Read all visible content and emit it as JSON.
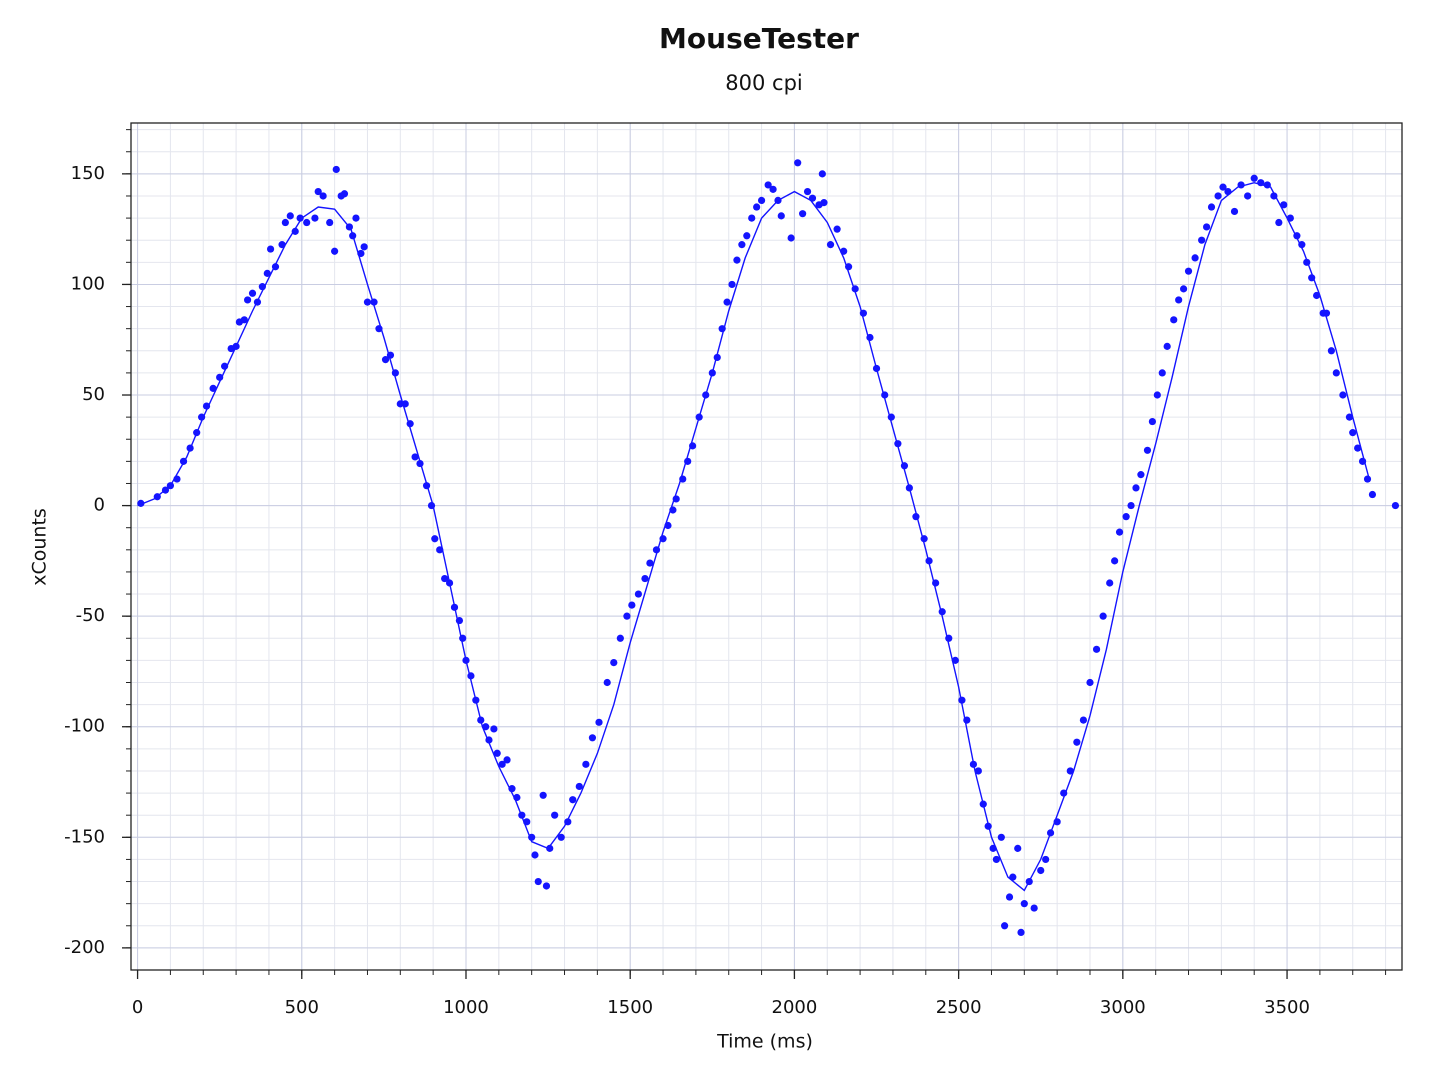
{
  "chart_data": {
    "type": "scatter",
    "title": "MouseTester",
    "subtitle": "800 cpi",
    "x_label": "Time (ms)",
    "y_label": "xCounts",
    "xlim": [
      -20,
      3850
    ],
    "ylim": [
      -210,
      173
    ],
    "xticks": [
      0,
      500,
      1000,
      1500,
      2000,
      2500,
      3000,
      3500
    ],
    "yticks": [
      -200,
      -150,
      -100,
      -50,
      0,
      50,
      100,
      150
    ],
    "grid": true,
    "series": [
      {
        "style": "markers",
        "color": "#1414ff",
        "x": [
          10,
          60,
          85,
          100,
          120,
          140,
          160,
          180,
          195,
          210,
          230,
          250,
          265,
          285,
          300,
          310,
          325,
          335,
          350,
          365,
          380,
          395,
          405,
          420,
          440,
          450,
          465,
          480,
          495,
          515,
          540,
          550,
          565,
          585,
          600,
          605,
          620,
          630,
          645,
          655,
          665,
          680,
          690,
          700,
          720,
          735,
          755,
          770,
          785,
          800,
          815,
          830,
          845,
          860,
          880,
          895,
          905,
          920,
          935,
          950,
          965,
          980,
          990,
          1000,
          1015,
          1030,
          1045,
          1060,
          1070,
          1085,
          1095,
          1110,
          1125,
          1140,
          1155,
          1170,
          1185,
          1200,
          1210,
          1220,
          1235,
          1245,
          1255,
          1270,
          1290,
          1310,
          1325,
          1345,
          1365,
          1385,
          1405,
          1430,
          1450,
          1470,
          1490,
          1505,
          1525,
          1545,
          1560,
          1580,
          1600,
          1615,
          1630,
          1640,
          1660,
          1675,
          1690,
          1710,
          1730,
          1750,
          1765,
          1780,
          1795,
          1810,
          1825,
          1840,
          1855,
          1870,
          1885,
          1900,
          1920,
          1935,
          1950,
          1960,
          1990,
          2010,
          2025,
          2040,
          2055,
          2075,
          2085,
          2090,
          2110,
          2130,
          2150,
          2165,
          2185,
          2210,
          2230,
          2250,
          2275,
          2295,
          2315,
          2335,
          2350,
          2370,
          2395,
          2410,
          2430,
          2450,
          2470,
          2490,
          2510,
          2525,
          2545,
          2560,
          2575,
          2590,
          2605,
          2615,
          2630,
          2640,
          2655,
          2665,
          2680,
          2690,
          2700,
          2715,
          2730,
          2750,
          2765,
          2780,
          2800,
          2820,
          2840,
          2860,
          2880,
          2900,
          2920,
          2940,
          2960,
          2975,
          2990,
          3010,
          3025,
          3040,
          3055,
          3075,
          3090,
          3105,
          3120,
          3135,
          3155,
          3170,
          3185,
          3200,
          3220,
          3240,
          3255,
          3270,
          3290,
          3305,
          3320,
          3340,
          3360,
          3380,
          3400,
          3420,
          3440,
          3460,
          3475,
          3490,
          3510,
          3530,
          3545,
          3560,
          3575,
          3590,
          3610,
          3620,
          3635,
          3650,
          3670,
          3690,
          3700,
          3715,
          3730,
          3745,
          3760,
          3830
        ],
        "values": [
          1,
          4,
          7,
          9,
          12,
          20,
          26,
          33,
          40,
          45,
          53,
          58,
          63,
          71,
          72,
          83,
          84,
          93,
          96,
          92,
          99,
          105,
          116,
          108,
          118,
          128,
          131,
          124,
          130,
          128,
          130,
          142,
          140,
          128,
          115,
          152,
          140,
          141,
          126,
          122,
          130,
          114,
          117,
          92,
          92,
          80,
          66,
          68,
          60,
          46,
          46,
          37,
          22,
          19,
          9,
          0,
          -15,
          -20,
          -33,
          -35,
          -46,
          -52,
          -60,
          -70,
          -77,
          -88,
          -97,
          -100,
          -106,
          -101,
          -112,
          -117,
          -115,
          -128,
          -132,
          -140,
          -143,
          -150,
          -158,
          -170,
          -131,
          -172,
          -155,
          -140,
          -150,
          -143,
          -133,
          -127,
          -117,
          -105,
          -98,
          -80,
          -71,
          -60,
          -50,
          -45,
          -40,
          -33,
          -26,
          -20,
          -15,
          -9,
          -2,
          3,
          12,
          20,
          27,
          40,
          50,
          60,
          67,
          80,
          92,
          100,
          111,
          118,
          122,
          130,
          135,
          138,
          145,
          143,
          138,
          131,
          121,
          155,
          132,
          142,
          139,
          136,
          150,
          137,
          118,
          125,
          115,
          108,
          98,
          87,
          76,
          62,
          50,
          40,
          28,
          18,
          8,
          -5,
          -15,
          -25,
          -35,
          -48,
          -60,
          -70,
          -88,
          -97,
          -117,
          -120,
          -135,
          -145,
          -155,
          -160,
          -150,
          -190,
          -177,
          -168,
          -155,
          -193,
          -180,
          -170,
          -182,
          -165,
          -160,
          -148,
          -143,
          -130,
          -120,
          -107,
          -97,
          -80,
          -65,
          -50,
          -35,
          -25,
          -12,
          -5,
          0,
          8,
          14,
          25,
          38,
          50,
          60,
          72,
          84,
          93,
          98,
          106,
          112,
          120,
          126,
          135,
          140,
          144,
          142,
          133,
          145,
          140,
          148,
          146,
          145,
          140,
          128,
          136,
          130,
          122,
          118,
          110,
          103,
          95,
          87,
          87,
          70,
          60,
          50,
          40,
          33,
          26,
          20,
          12,
          5,
          0
        ]
      },
      {
        "style": "line",
        "color": "#1414ff",
        "x": [
          0,
          50,
          100,
          150,
          200,
          250,
          300,
          350,
          400,
          450,
          500,
          550,
          600,
          650,
          700,
          750,
          800,
          850,
          900,
          950,
          1000,
          1050,
          1100,
          1150,
          1200,
          1250,
          1300,
          1350,
          1400,
          1450,
          1500,
          1550,
          1600,
          1650,
          1700,
          1750,
          1800,
          1850,
          1900,
          1950,
          2000,
          2050,
          2100,
          2150,
          2200,
          2250,
          2300,
          2350,
          2400,
          2450,
          2500,
          2550,
          2600,
          2650,
          2700,
          2750,
          2800,
          2850,
          2900,
          2950,
          3000,
          3050,
          3100,
          3150,
          3200,
          3250,
          3300,
          3350,
          3400,
          3450,
          3500,
          3550,
          3600,
          3650,
          3700,
          3750
        ],
        "values": [
          0,
          3,
          9,
          22,
          40,
          56,
          72,
          88,
          103,
          118,
          130,
          135,
          134,
          125,
          100,
          76,
          50,
          25,
          0,
          -35,
          -70,
          -100,
          -118,
          -133,
          -152,
          -155,
          -145,
          -130,
          -112,
          -90,
          -62,
          -37,
          -12,
          10,
          35,
          60,
          88,
          112,
          130,
          138,
          142,
          138,
          128,
          112,
          90,
          62,
          35,
          8,
          -20,
          -50,
          -82,
          -120,
          -150,
          -168,
          -174,
          -160,
          -140,
          -120,
          -95,
          -65,
          -30,
          0,
          28,
          58,
          90,
          118,
          138,
          144,
          146,
          144,
          130,
          115,
          95,
          70,
          40,
          12
        ]
      }
    ]
  }
}
